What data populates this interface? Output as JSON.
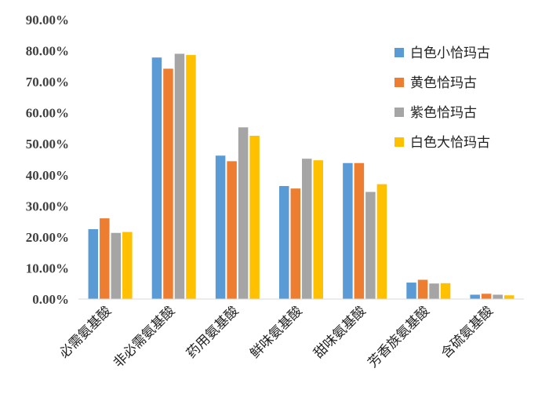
{
  "chart_data": {
    "type": "bar",
    "title": "",
    "xlabel": "",
    "ylabel": "",
    "ylim": [
      0,
      90
    ],
    "ytick_step": 10,
    "ytick_labels": [
      "0.00%",
      "10.00%",
      "20.00%",
      "30.00%",
      "40.00%",
      "50.00%",
      "60.00%",
      "70.00%",
      "80.00%",
      "90.00%"
    ],
    "grid": false,
    "legend_position": "top-right",
    "categories": [
      "必需氨基酸",
      "非必需氨基酸",
      "药用氨基酸",
      "鲜味氨基酸",
      "甜味氨基酸",
      "芳香族氨基酸",
      "含硫氨基酸"
    ],
    "series": [
      {
        "name": "白色小恰玛古",
        "color": "#5B9BD5",
        "values": [
          22.5,
          77.8,
          46.2,
          36.4,
          43.8,
          5.3,
          1.4
        ]
      },
      {
        "name": "黄色恰玛古",
        "color": "#ED7D31",
        "values": [
          26.0,
          74.2,
          44.4,
          35.6,
          43.8,
          6.2,
          1.7
        ]
      },
      {
        "name": "紫色恰玛古",
        "color": "#A5A5A5",
        "values": [
          21.3,
          79.0,
          55.3,
          45.2,
          34.5,
          5.0,
          1.4
        ]
      },
      {
        "name": "白色大恰玛古",
        "color": "#FFC000",
        "values": [
          21.6,
          78.6,
          52.6,
          44.7,
          37.0,
          5.1,
          1.2
        ]
      }
    ]
  }
}
